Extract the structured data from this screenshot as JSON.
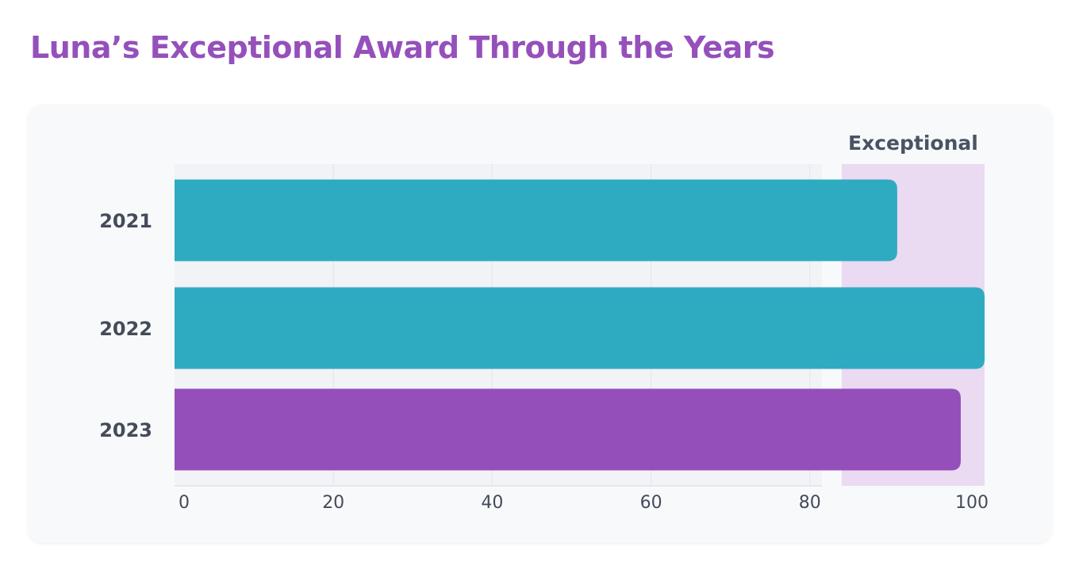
{
  "colors": {
    "title": "#9550bb",
    "bar_default": "#2fabc1",
    "bar_highlight": "#954fba",
    "band": "#eadaf2",
    "plot_bg": "#f1f3f6"
  },
  "chart_data": {
    "type": "bar",
    "orientation": "horizontal",
    "title": "Luna’s Exceptional Award Through the Years",
    "categories": [
      "2021",
      "2022",
      "2023"
    ],
    "values": [
      91,
      102,
      99
    ],
    "highlight_index": 2,
    "xlim": [
      0,
      102
    ],
    "xticks": [
      "0",
      "20",
      "40",
      "60",
      "80",
      "100"
    ],
    "xtick_values": [
      0,
      20,
      40,
      60,
      80,
      100
    ],
    "grid": "vertical",
    "band": {
      "label": "Exceptional",
      "from": 84,
      "to": 102
    }
  }
}
